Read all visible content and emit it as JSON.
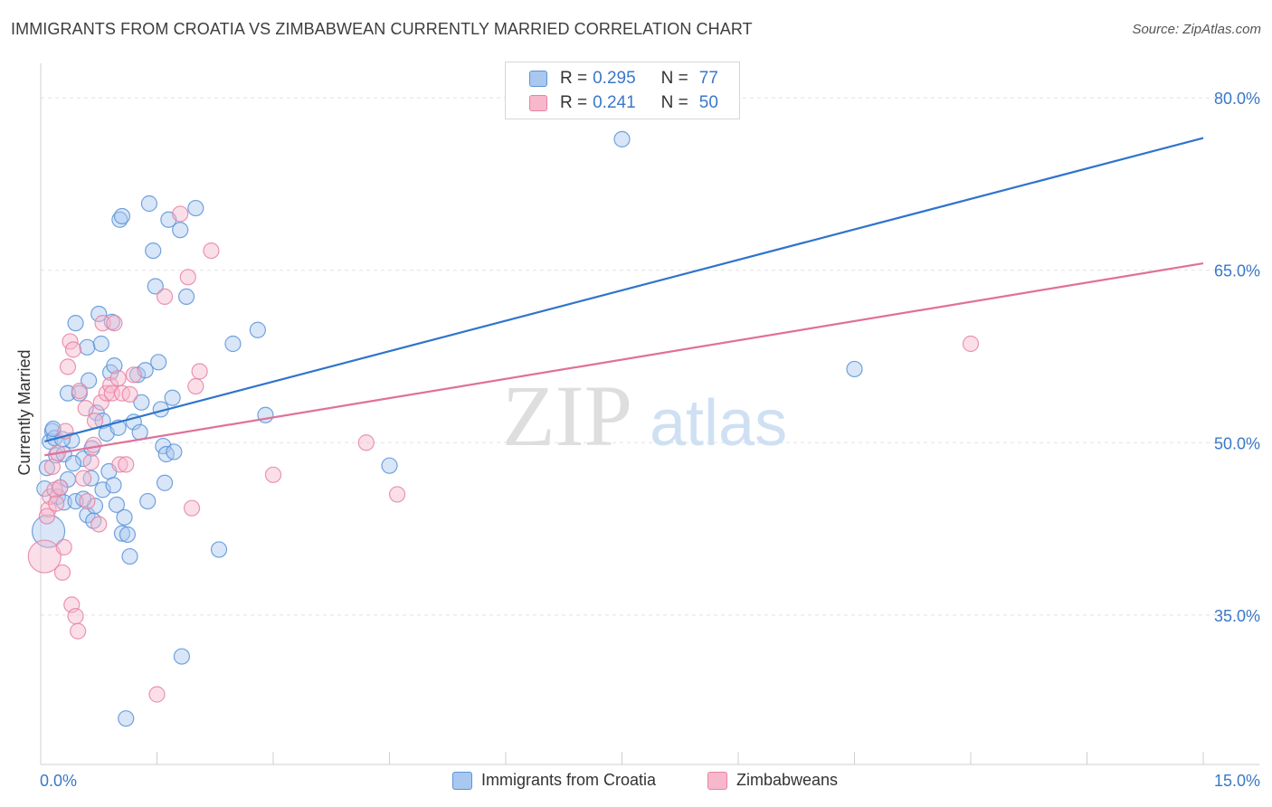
{
  "header": {
    "title": "IMMIGRANTS FROM CROATIA VS ZIMBABWEAN CURRENTLY MARRIED CORRELATION CHART",
    "source": "Source: ZipAtlas.com"
  },
  "legend": {
    "rows": [
      {
        "r_label": "R =",
        "r_value": "0.295",
        "n_label": "N =",
        "n_value": "77"
      },
      {
        "r_label": "R =",
        "r_value": "0.241",
        "n_label": "N =",
        "n_value": "50"
      }
    ]
  },
  "watermark": {
    "zip": "ZIP",
    "atlas": "atlas"
  },
  "colors": {
    "croatia_fill": "#a8c8f0",
    "croatia_stroke": "#5b93d8",
    "croatia_line": "#2f74cc",
    "zimbabwe_fill": "#f7b8cc",
    "zimbabwe_stroke": "#e882a3",
    "zimbabwe_line": "#e0709a",
    "axis_text": "#3a78c9",
    "grid": "#e2e2e2"
  },
  "chart_data": {
    "type": "scatter",
    "xlabel": "",
    "ylabel": "Currently Married",
    "xlim": [
      0.0,
      15.0
    ],
    "ylim": [
      22.0,
      83.0
    ],
    "x_tick_labels": [
      {
        "value": 0.0,
        "label": "0.0%"
      },
      {
        "value": 15.0,
        "label": "15.0%"
      }
    ],
    "y_tick_labels": [
      {
        "value": 80.0,
        "label": "80.0%"
      },
      {
        "value": 65.0,
        "label": "65.0%"
      },
      {
        "value": 50.0,
        "label": "50.0%"
      },
      {
        "value": 35.0,
        "label": "35.0%"
      }
    ],
    "x_minor_ticks": [
      0,
      1.5,
      3.0,
      4.5,
      6.0,
      7.5,
      9.0,
      10.5,
      12.0,
      13.5,
      15.0
    ],
    "grid": true,
    "legend_position": "bottom",
    "series": [
      {
        "name": "Immigrants from Croatia",
        "trend": {
          "x": [
            0.05,
            15.0
          ],
          "y": [
            50.1,
            76.5
          ]
        },
        "points": [
          [
            0.1,
            42.3
          ],
          [
            0.12,
            50.1
          ],
          [
            0.15,
            51.0
          ],
          [
            0.18,
            50.4
          ],
          [
            0.2,
            48.9
          ],
          [
            0.22,
            45.3
          ],
          [
            0.25,
            46.1
          ],
          [
            0.3,
            44.8
          ],
          [
            0.3,
            49.0
          ],
          [
            0.35,
            46.8
          ],
          [
            0.35,
            54.3
          ],
          [
            0.4,
            50.2
          ],
          [
            0.45,
            44.9
          ],
          [
            0.45,
            60.4
          ],
          [
            0.5,
            54.3
          ],
          [
            0.55,
            48.6
          ],
          [
            0.6,
            58.3
          ],
          [
            0.6,
            43.7
          ],
          [
            0.62,
            55.4
          ],
          [
            0.65,
            46.9
          ],
          [
            0.68,
            43.2
          ],
          [
            0.7,
            44.5
          ],
          [
            0.72,
            52.6
          ],
          [
            0.75,
            61.2
          ],
          [
            0.78,
            58.6
          ],
          [
            0.8,
            45.9
          ],
          [
            0.8,
            51.9
          ],
          [
            0.85,
            50.8
          ],
          [
            0.9,
            56.1
          ],
          [
            0.92,
            60.5
          ],
          [
            0.95,
            56.7
          ],
          [
            0.98,
            44.6
          ],
          [
            1.0,
            51.3
          ],
          [
            1.02,
            69.4
          ],
          [
            1.05,
            42.1
          ],
          [
            1.05,
            69.7
          ],
          [
            1.08,
            43.5
          ],
          [
            1.1,
            26.0
          ],
          [
            1.12,
            42.0
          ],
          [
            1.15,
            40.1
          ],
          [
            1.2,
            51.8
          ],
          [
            1.25,
            55.9
          ],
          [
            1.3,
            53.5
          ],
          [
            1.35,
            56.3
          ],
          [
            1.38,
            44.9
          ],
          [
            1.4,
            70.8
          ],
          [
            1.45,
            66.7
          ],
          [
            1.48,
            63.6
          ],
          [
            1.52,
            57.0
          ],
          [
            1.55,
            52.9
          ],
          [
            1.58,
            49.7
          ],
          [
            1.6,
            46.5
          ],
          [
            1.62,
            49.0
          ],
          [
            1.65,
            69.4
          ],
          [
            1.7,
            53.9
          ],
          [
            1.72,
            49.2
          ],
          [
            1.8,
            68.5
          ],
          [
            1.82,
            31.4
          ],
          [
            1.88,
            62.7
          ],
          [
            2.0,
            70.4
          ],
          [
            2.3,
            40.7
          ],
          [
            2.48,
            58.6
          ],
          [
            2.8,
            59.8
          ],
          [
            2.9,
            52.4
          ],
          [
            4.5,
            48.0
          ],
          [
            7.5,
            76.4
          ],
          [
            10.5,
            56.4
          ],
          [
            0.05,
            46.0
          ],
          [
            0.08,
            47.8
          ],
          [
            0.28,
            50.3
          ],
          [
            0.42,
            48.2
          ],
          [
            0.55,
            45.1
          ],
          [
            0.88,
            47.5
          ],
          [
            1.28,
            50.9
          ],
          [
            0.66,
            49.5
          ],
          [
            0.16,
            51.2
          ],
          [
            0.94,
            46.3
          ]
        ]
      },
      {
        "name": "Zimbabweans",
        "trend": {
          "x": [
            0.05,
            15.0
          ],
          "y": [
            48.9,
            65.6
          ]
        },
        "points": [
          [
            0.05,
            40.1
          ],
          [
            0.1,
            44.2
          ],
          [
            0.12,
            45.3
          ],
          [
            0.15,
            47.9
          ],
          [
            0.18,
            45.9
          ],
          [
            0.2,
            44.7
          ],
          [
            0.22,
            49.1
          ],
          [
            0.25,
            46.1
          ],
          [
            0.28,
            38.7
          ],
          [
            0.3,
            40.9
          ],
          [
            0.32,
            51.0
          ],
          [
            0.35,
            56.6
          ],
          [
            0.38,
            58.8
          ],
          [
            0.4,
            35.9
          ],
          [
            0.42,
            58.1
          ],
          [
            0.45,
            34.9
          ],
          [
            0.48,
            33.6
          ],
          [
            0.5,
            54.5
          ],
          [
            0.55,
            46.9
          ],
          [
            0.6,
            44.9
          ],
          [
            0.65,
            48.3
          ],
          [
            0.7,
            51.9
          ],
          [
            0.75,
            42.9
          ],
          [
            0.78,
            53.5
          ],
          [
            0.8,
            60.4
          ],
          [
            0.85,
            54.3
          ],
          [
            0.9,
            55.0
          ],
          [
            0.92,
            54.3
          ],
          [
            0.95,
            60.4
          ],
          [
            1.0,
            55.6
          ],
          [
            1.02,
            48.1
          ],
          [
            1.05,
            54.3
          ],
          [
            1.1,
            48.1
          ],
          [
            1.15,
            54.2
          ],
          [
            1.2,
            55.9
          ],
          [
            1.5,
            28.1
          ],
          [
            1.6,
            62.7
          ],
          [
            1.8,
            69.9
          ],
          [
            1.9,
            64.4
          ],
          [
            1.95,
            44.3
          ],
          [
            2.0,
            54.9
          ],
          [
            2.05,
            56.2
          ],
          [
            2.2,
            66.7
          ],
          [
            3.0,
            47.2
          ],
          [
            4.2,
            50.0
          ],
          [
            4.6,
            45.5
          ],
          [
            12.0,
            58.6
          ],
          [
            0.08,
            43.6
          ],
          [
            0.58,
            53.0
          ],
          [
            0.68,
            49.8
          ]
        ]
      }
    ]
  },
  "bottom_legend": {
    "items": [
      {
        "label": "Immigrants from Croatia"
      },
      {
        "label": "Zimbabweans"
      }
    ]
  }
}
